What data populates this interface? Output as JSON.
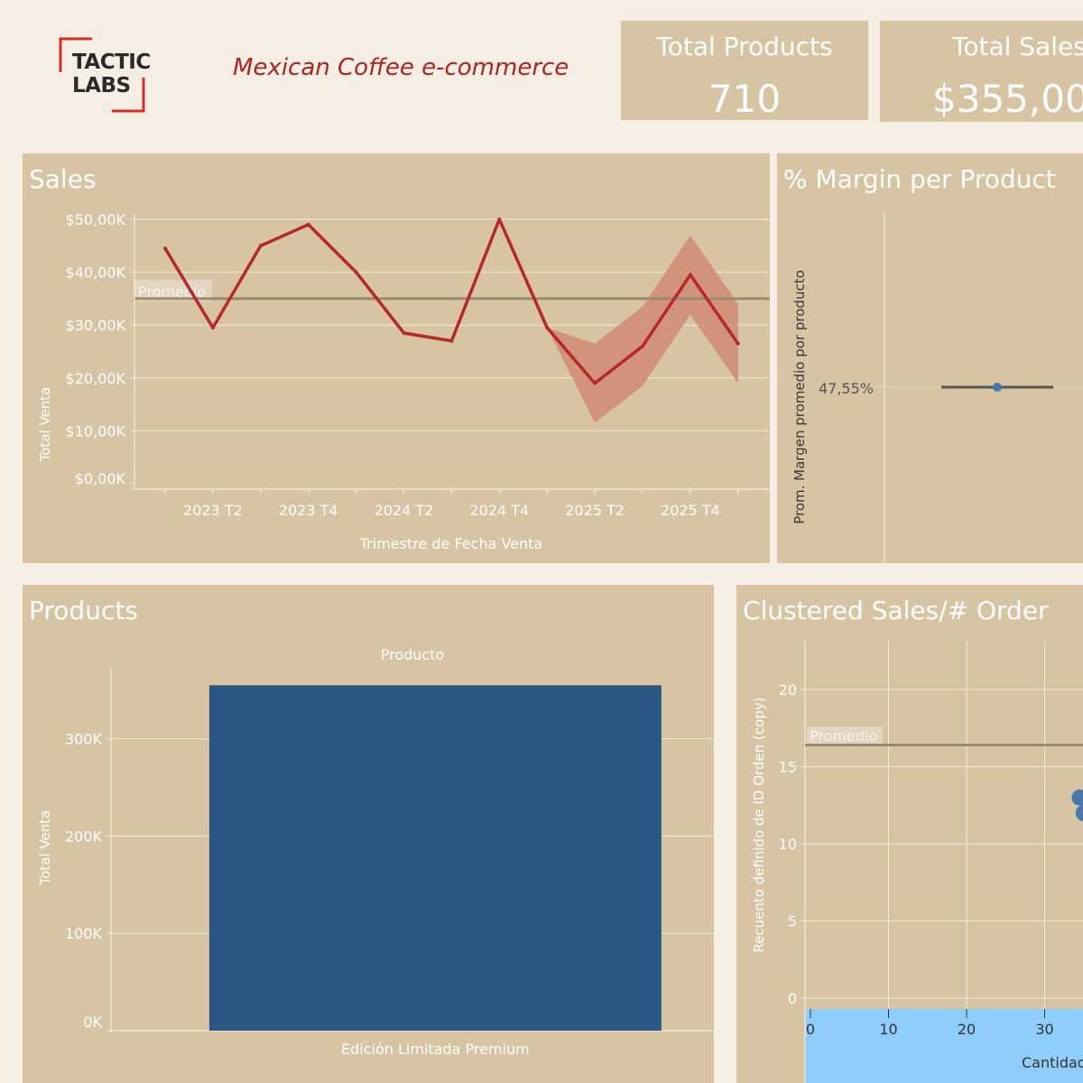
{
  "header": {
    "logo_line1": "TACTIC",
    "logo_line2": "LABS",
    "title": "Mexican Coffee e-commerce"
  },
  "kpis": [
    {
      "title": "Total Products",
      "value": "710"
    },
    {
      "title": "Total Sales",
      "value": "$355,00"
    }
  ],
  "colors": {
    "page_bg": "#f5eee4",
    "panel_bg": "#d6c4a2",
    "sales_line": "#b8282a",
    "forecast_band": "#d08b74",
    "reference_line": "#9b8a70",
    "bar_fill": "#2b5784",
    "dot_fill": "#4a77ab",
    "selection_band": "#8fcdfa"
  },
  "chart_data": [
    {
      "id": "sales",
      "type": "line",
      "panel_title": "Sales",
      "xlabel": "Trimestre de Fecha Venta",
      "ylabel": "Total Venta",
      "x": [
        "2023 T1",
        "2023 T2",
        "2023 T3",
        "2023 T4",
        "2024 T1",
        "2024 T2",
        "2024 T3",
        "2024 T4",
        "2025 T1",
        "2025 T2",
        "2025 T3",
        "2025 T4",
        "2026 T1"
      ],
      "x_tick_labels": [
        "2023 T2",
        "2023 T4",
        "2024 T2",
        "2024 T4",
        "2025 T2",
        "2025 T4"
      ],
      "values": [
        44.5,
        29.5,
        45,
        49,
        40,
        28.5,
        27,
        50,
        29.5,
        19,
        26,
        39.5,
        26.5
      ],
      "forecast_band": {
        "x": [
          "2025 T1",
          "2025 T2",
          "2025 T3",
          "2025 T4",
          "2026 T1"
        ],
        "upper": [
          29.5,
          26.5,
          33.5,
          47,
          34
        ],
        "lower": [
          29.5,
          11.5,
          18.5,
          32,
          19
        ]
      },
      "reference_line": {
        "label": "Promedio",
        "value": 35
      },
      "y_ticks": [
        0,
        10,
        20,
        30,
        40,
        50
      ],
      "y_tick_labels": [
        "$0,00K",
        "$10,00K",
        "$20,00K",
        "$30,00K",
        "$40,00K",
        "$50,00K"
      ],
      "ylim": [
        0,
        53
      ],
      "unit": "K"
    },
    {
      "id": "margin",
      "type": "scatter",
      "panel_title": "% Margin per Product",
      "ylabel": "Prom. Margen promedio por producto",
      "category_label": "47,55%",
      "value": 47.55
    },
    {
      "id": "products",
      "type": "bar",
      "panel_title": "Products",
      "column_header": "Producto",
      "categories": [
        "Edición Limitada Premium"
      ],
      "values": [
        355000
      ],
      "ylabel": "Total Venta",
      "y_ticks": [
        0,
        100000,
        200000,
        300000
      ],
      "y_tick_labels": [
        "0K",
        "100K",
        "200K",
        "300K"
      ],
      "ylim": [
        0,
        367000
      ]
    },
    {
      "id": "clustered",
      "type": "scatter",
      "panel_title": "Clustered Sales/# Order",
      "ylabel": "Recuento definido de ID Orden (copy)",
      "xlabel": "Cantidad",
      "x_ticks": [
        0,
        10,
        20,
        30
      ],
      "y_ticks": [
        0,
        5,
        10,
        15,
        20
      ],
      "xlim": [
        0,
        35
      ],
      "ylim": [
        0,
        22.5
      ],
      "reference_line": {
        "label": "Promedio",
        "value": 16.4
      },
      "points": [
        {
          "x": 34.5,
          "y": 13
        },
        {
          "x": 35,
          "y": 12
        }
      ]
    }
  ]
}
